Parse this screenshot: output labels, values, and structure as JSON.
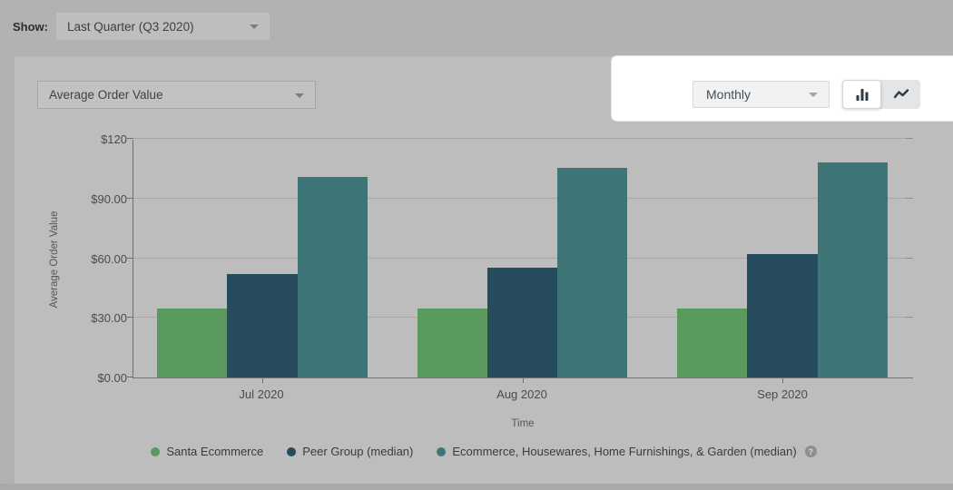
{
  "topbar": {
    "show_label": "Show:",
    "period_value": "Last Quarter (Q3 2020)"
  },
  "card": {
    "metric_value": "Average Order Value",
    "granularity_value": "Monthly",
    "chart_type_selected": "bar"
  },
  "legend_help_icon": "?",
  "chart_data": {
    "type": "bar",
    "title": "",
    "categories": [
      "Jul 2020",
      "Aug 2020",
      "Sep 2020"
    ],
    "series": [
      {
        "name": "Santa Ecommerce",
        "color": "#5a9a5e",
        "values": [
          34.5,
          34.5,
          34.5
        ]
      },
      {
        "name": "Peer Group (median)",
        "color": "#254b5c",
        "values": [
          52,
          55,
          62
        ]
      },
      {
        "name": "Ecommerce, Housewares, Home Furnishings, & Garden (median)",
        "color": "#3e7677",
        "values": [
          101,
          105.5,
          108
        ]
      }
    ],
    "xlabel": "Time",
    "ylabel": "Average Order Value",
    "ylim": [
      0,
      120
    ],
    "yticks": [
      {
        "value": 0,
        "label": "$0.00"
      },
      {
        "value": 30,
        "label": "$30.00"
      },
      {
        "value": 60,
        "label": "$60.00"
      },
      {
        "value": 90,
        "label": "$90.00"
      },
      {
        "value": 120,
        "label": "$120"
      }
    ],
    "grid": true,
    "legend_position": "bottom"
  }
}
